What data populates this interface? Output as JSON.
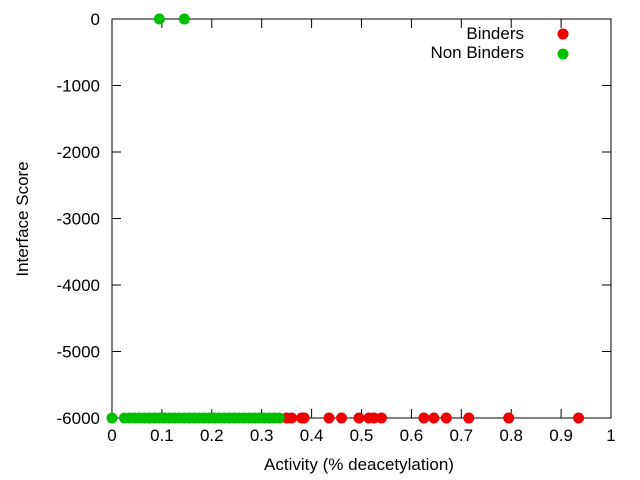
{
  "chart_data": {
    "type": "scatter",
    "xlabel": "Activity (% deacetylation)",
    "ylabel": "Interface Score",
    "xlim": [
      0,
      1
    ],
    "ylim": [
      -6000,
      0
    ],
    "xticks": [
      "0",
      "0.1",
      "0.2",
      "0.3",
      "0.4",
      "0.5",
      "0.6",
      "0.7",
      "0.8",
      "0.9",
      "1"
    ],
    "yticks": [
      "0",
      "-1000",
      "-2000",
      "-3000",
      "-4000",
      "-5000",
      "-6000"
    ],
    "grid": false,
    "legend_position": "top-right",
    "series": [
      {
        "name": "Binders",
        "color": "#ee0000",
        "points": [
          {
            "x": 0.35,
            "y": -6000
          },
          {
            "x": 0.36,
            "y": -6000
          },
          {
            "x": 0.38,
            "y": -6000
          },
          {
            "x": 0.385,
            "y": -6000
          },
          {
            "x": 0.435,
            "y": -6000
          },
          {
            "x": 0.46,
            "y": -6000
          },
          {
            "x": 0.495,
            "y": -6000
          },
          {
            "x": 0.515,
            "y": -6000
          },
          {
            "x": 0.525,
            "y": -6000
          },
          {
            "x": 0.54,
            "y": -6000
          },
          {
            "x": 0.625,
            "y": -6000
          },
          {
            "x": 0.645,
            "y": -6000
          },
          {
            "x": 0.67,
            "y": -6000
          },
          {
            "x": 0.715,
            "y": -6000
          },
          {
            "x": 0.795,
            "y": -6000
          },
          {
            "x": 0.935,
            "y": -6000
          }
        ]
      },
      {
        "name": "Non Binders",
        "color": "#00c000",
        "points": [
          {
            "x": 0.095,
            "y": 0
          },
          {
            "x": 0.145,
            "y": 0
          },
          {
            "x": 0.0,
            "y": -6000
          },
          {
            "x": 0.025,
            "y": -6000
          },
          {
            "x": 0.035,
            "y": -6000
          },
          {
            "x": 0.045,
            "y": -6000
          },
          {
            "x": 0.055,
            "y": -6000
          },
          {
            "x": 0.065,
            "y": -6000
          },
          {
            "x": 0.075,
            "y": -6000
          },
          {
            "x": 0.085,
            "y": -6000
          },
          {
            "x": 0.095,
            "y": -6000
          },
          {
            "x": 0.105,
            "y": -6000
          },
          {
            "x": 0.115,
            "y": -6000
          },
          {
            "x": 0.125,
            "y": -6000
          },
          {
            "x": 0.135,
            "y": -6000
          },
          {
            "x": 0.145,
            "y": -6000
          },
          {
            "x": 0.155,
            "y": -6000
          },
          {
            "x": 0.165,
            "y": -6000
          },
          {
            "x": 0.175,
            "y": -6000
          },
          {
            "x": 0.185,
            "y": -6000
          },
          {
            "x": 0.195,
            "y": -6000
          },
          {
            "x": 0.205,
            "y": -6000
          },
          {
            "x": 0.215,
            "y": -6000
          },
          {
            "x": 0.225,
            "y": -6000
          },
          {
            "x": 0.235,
            "y": -6000
          },
          {
            "x": 0.245,
            "y": -6000
          },
          {
            "x": 0.255,
            "y": -6000
          },
          {
            "x": 0.265,
            "y": -6000
          },
          {
            "x": 0.275,
            "y": -6000
          },
          {
            "x": 0.285,
            "y": -6000
          },
          {
            "x": 0.295,
            "y": -6000
          },
          {
            "x": 0.305,
            "y": -6000
          },
          {
            "x": 0.315,
            "y": -6000
          },
          {
            "x": 0.325,
            "y": -6000
          },
          {
            "x": 0.335,
            "y": -6000
          }
        ]
      }
    ]
  }
}
